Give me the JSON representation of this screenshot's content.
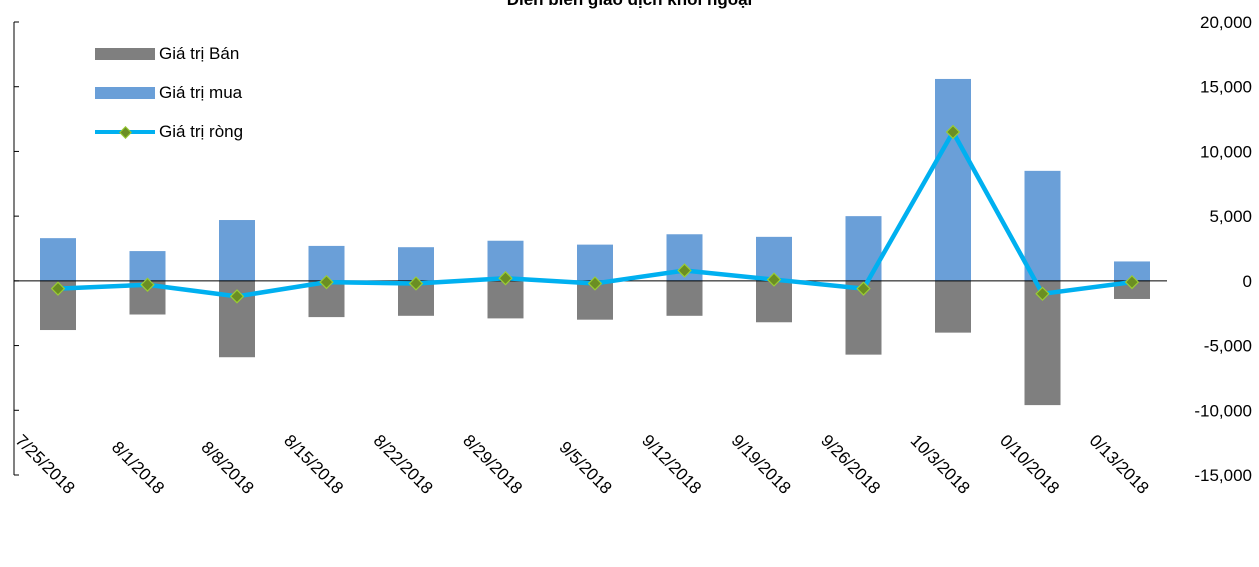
{
  "chart_data": {
    "type": "bar",
    "title": "Diễn biến giao dịch khối ngoại",
    "categories": [
      "7/25/2018",
      "8/1/2018",
      "8/8/2018",
      "8/15/2018",
      "8/22/2018",
      "8/29/2018",
      "9/5/2018",
      "9/12/2018",
      "9/19/2018",
      "9/26/2018",
      "10/3/2018",
      "0/10/2018",
      "0/13/2018"
    ],
    "series": [
      {
        "name": "Giá trị Bán",
        "type": "bar",
        "color": "#7f7f7f",
        "values": [
          -3800,
          -2600,
          -5900,
          -2800,
          -2700,
          -2900,
          -3000,
          -2700,
          -3200,
          -5700,
          -4000,
          -9600,
          -1400
        ]
      },
      {
        "name": "Giá trị mua",
        "type": "bar",
        "color": "#6a9fd8",
        "values": [
          3300,
          2300,
          4700,
          2700,
          2600,
          3100,
          2800,
          3600,
          3400,
          5000,
          15600,
          8500,
          1500
        ]
      },
      {
        "name": "Giá trị ròng",
        "type": "line",
        "color": "#00b0f0",
        "marker_color": "#6b8e23",
        "values": [
          -600,
          -300,
          -1200,
          -100,
          -200,
          200,
          -200,
          800,
          100,
          -600,
          11500,
          -1000,
          -100
        ]
      }
    ],
    "ylim": [
      -15000,
      20000
    ],
    "yticks": [
      "20,000",
      "15,000",
      "10,000",
      "5,000",
      "0",
      "-5,000",
      "-10,000",
      "-15,000"
    ],
    "ytick_values": [
      20000,
      15000,
      10000,
      5000,
      0,
      -5000,
      -10000,
      -15000
    ],
    "legend_position": "top-left",
    "grid": false
  }
}
